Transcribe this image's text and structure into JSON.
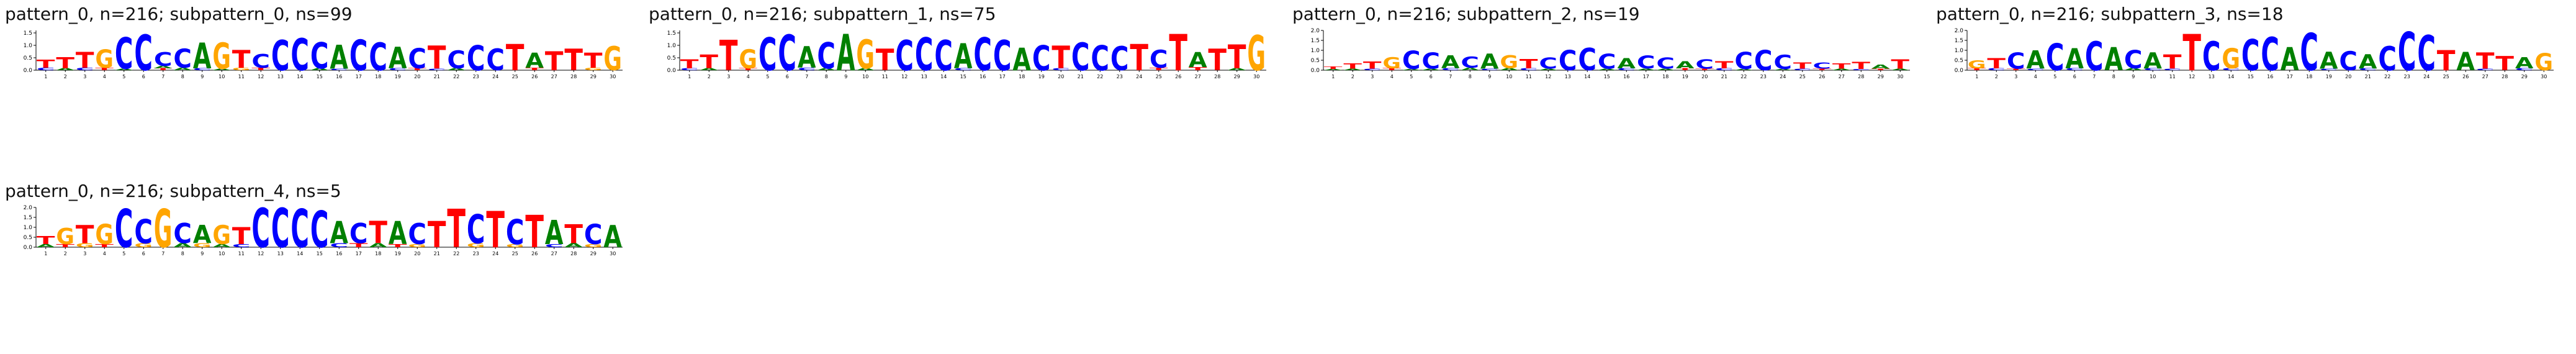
{
  "page": {
    "background": "#ffffff"
  },
  "colors": {
    "A": "#008000",
    "C": "#0000ff",
    "G": "#ffa500",
    "T": "#ff0000"
  },
  "positions": [
    1,
    2,
    3,
    4,
    5,
    6,
    7,
    8,
    9,
    10,
    11,
    12,
    13,
    14,
    15,
    16,
    17,
    18,
    19,
    20,
    21,
    22,
    23,
    24,
    25,
    26,
    27,
    28,
    29,
    30
  ],
  "chart_data": [
    {
      "type": "sequence_logo",
      "title": "pattern_0, n=216; subpattern_0, ns=99",
      "xlabel": "",
      "ylabel": "",
      "ylim": [
        0,
        1.6
      ],
      "yticks": [
        0,
        0.5,
        1.0,
        1.5
      ],
      "stacks": [
        [
          [
            "C",
            0.1
          ],
          [
            "T",
            0.32
          ]
        ],
        [
          [
            "A",
            0.08
          ],
          [
            "T",
            0.45
          ]
        ],
        [
          [
            "C",
            0.1
          ],
          [
            "T",
            0.62
          ]
        ],
        [
          [
            "T",
            0.1
          ],
          [
            "G",
            0.72
          ]
        ],
        [
          [
            "A",
            0.06
          ],
          [
            "C",
            1.25
          ]
        ],
        [
          [
            "C",
            1.42
          ]
        ],
        [
          [
            "T",
            0.08
          ],
          [
            "A",
            0.1
          ],
          [
            "C",
            0.55
          ]
        ],
        [
          [
            "A",
            0.1
          ],
          [
            "C",
            0.75
          ]
        ],
        [
          [
            "C",
            0.08
          ],
          [
            "A",
            1.02
          ]
        ],
        [
          [
            "A",
            0.06
          ],
          [
            "G",
            1.05
          ]
        ],
        [
          [
            "G",
            0.1
          ],
          [
            "T",
            0.7
          ]
        ],
        [
          [
            "T",
            0.1
          ],
          [
            "C",
            0.55
          ]
        ],
        [
          [
            "C",
            1.2
          ]
        ],
        [
          [
            "C",
            1.26
          ]
        ],
        [
          [
            "A",
            0.08
          ],
          [
            "C",
            1.05
          ]
        ],
        [
          [
            "C",
            0.06
          ],
          [
            "A",
            0.95
          ]
        ],
        [
          [
            "C",
            1.22
          ]
        ],
        [
          [
            "C",
            1.1
          ]
        ],
        [
          [
            "C",
            0.08
          ],
          [
            "A",
            0.85
          ]
        ],
        [
          [
            "T",
            0.08
          ],
          [
            "C",
            0.8
          ]
        ],
        [
          [
            "C",
            0.06
          ],
          [
            "T",
            0.92
          ]
        ],
        [
          [
            "A",
            0.08
          ],
          [
            "C",
            0.7
          ]
        ],
        [
          [
            "C",
            1.0
          ]
        ],
        [
          [
            "C",
            0.85
          ]
        ],
        [
          [
            "T",
            1.05
          ]
        ],
        [
          [
            "T",
            0.1
          ],
          [
            "A",
            0.6
          ]
        ],
        [
          [
            "T",
            0.76
          ]
        ],
        [
          [
            "T",
            0.85
          ]
        ],
        [
          [
            "G",
            0.1
          ],
          [
            "T",
            0.6
          ]
        ],
        [
          [
            "G",
            0.95
          ]
        ]
      ]
    },
    {
      "type": "sequence_logo",
      "title": "pattern_0, n=216; subpattern_1, ns=75",
      "xlabel": "",
      "ylabel": "",
      "ylim": [
        0,
        1.6
      ],
      "yticks": [
        0,
        0.5,
        1.0,
        1.5
      ],
      "stacks": [
        [
          [
            "C",
            0.08
          ],
          [
            "T",
            0.35
          ]
        ],
        [
          [
            "A",
            0.08
          ],
          [
            "T",
            0.55
          ]
        ],
        [
          [
            "T",
            1.2
          ]
        ],
        [
          [
            "T",
            0.08
          ],
          [
            "G",
            0.75
          ]
        ],
        [
          [
            "C",
            1.3
          ]
        ],
        [
          [
            "C",
            1.42
          ]
        ],
        [
          [
            "C",
            0.1
          ],
          [
            "A",
            0.85
          ]
        ],
        [
          [
            "A",
            0.08
          ],
          [
            "C",
            1.05
          ]
        ],
        [
          [
            "A",
            1.45
          ]
        ],
        [
          [
            "A",
            0.08
          ],
          [
            "G",
            1.15
          ]
        ],
        [
          [
            "T",
            0.85
          ]
        ],
        [
          [
            "C",
            1.2
          ]
        ],
        [
          [
            "C",
            1.3
          ]
        ],
        [
          [
            "C",
            1.2
          ]
        ],
        [
          [
            "C",
            0.08
          ],
          [
            "A",
            1.0
          ]
        ],
        [
          [
            "C",
            1.3
          ]
        ],
        [
          [
            "C",
            1.2
          ]
        ],
        [
          [
            "A",
            0.9
          ]
        ],
        [
          [
            "C",
            1.0
          ]
        ],
        [
          [
            "C",
            0.08
          ],
          [
            "T",
            0.9
          ]
        ],
        [
          [
            "C",
            1.1
          ]
        ],
        [
          [
            "C",
            1.0
          ]
        ],
        [
          [
            "C",
            0.95
          ]
        ],
        [
          [
            "T",
            1.05
          ]
        ],
        [
          [
            "T",
            0.1
          ],
          [
            "C",
            0.7
          ]
        ],
        [
          [
            "T",
            1.45
          ]
        ],
        [
          [
            "T",
            0.12
          ],
          [
            "A",
            0.6
          ]
        ],
        [
          [
            "T",
            0.85
          ]
        ],
        [
          [
            "A",
            0.08
          ],
          [
            "T",
            0.95
          ]
        ],
        [
          [
            "G",
            1.4
          ]
        ]
      ]
    },
    {
      "type": "sequence_logo",
      "title": "pattern_0, n=216; subpattern_2, ns=19",
      "xlabel": "",
      "ylabel": "",
      "ylim": [
        0,
        2.0
      ],
      "yticks": [
        0,
        0.5,
        1.0,
        1.5,
        2.0
      ],
      "stacks": [
        [
          [
            "A",
            0.06
          ],
          [
            "T",
            0.12
          ]
        ],
        [
          [
            "A",
            0.08
          ],
          [
            "T",
            0.25
          ]
        ],
        [
          [
            "C",
            0.08
          ],
          [
            "T",
            0.35
          ]
        ],
        [
          [
            "T",
            0.1
          ],
          [
            "G",
            0.55
          ]
        ],
        [
          [
            "A",
            0.06
          ],
          [
            "C",
            0.9
          ]
        ],
        [
          [
            "A",
            0.08
          ],
          [
            "C",
            0.8
          ]
        ],
        [
          [
            "C",
            0.1
          ],
          [
            "A",
            0.65
          ]
        ],
        [
          [
            "A",
            0.12
          ],
          [
            "C",
            0.55
          ]
        ],
        [
          [
            "C",
            0.08
          ],
          [
            "A",
            0.75
          ]
        ],
        [
          [
            "A",
            0.1
          ],
          [
            "G",
            0.65
          ]
        ],
        [
          [
            "C",
            0.1
          ],
          [
            "T",
            0.45
          ]
        ],
        [
          [
            "A",
            0.08
          ],
          [
            "C",
            0.55
          ]
        ],
        [
          [
            "C",
            1.0
          ]
        ],
        [
          [
            "C",
            1.1
          ]
        ],
        [
          [
            "A",
            0.08
          ],
          [
            "C",
            0.75
          ]
        ],
        [
          [
            "C",
            0.1
          ],
          [
            "A",
            0.5
          ]
        ],
        [
          [
            "A",
            0.08
          ],
          [
            "C",
            0.65
          ]
        ],
        [
          [
            "A",
            0.08
          ],
          [
            "C",
            0.55
          ]
        ],
        [
          [
            "T",
            0.1
          ],
          [
            "A",
            0.35
          ]
        ],
        [
          [
            "T",
            0.08
          ],
          [
            "C",
            0.45
          ]
        ],
        [
          [
            "C",
            0.1
          ],
          [
            "T",
            0.35
          ]
        ],
        [
          [
            "A",
            0.06
          ],
          [
            "C",
            0.85
          ]
        ],
        [
          [
            "C",
            1.0
          ]
        ],
        [
          [
            "A",
            0.06
          ],
          [
            "C",
            0.7
          ]
        ],
        [
          [
            "C",
            0.08
          ],
          [
            "T",
            0.3
          ]
        ],
        [
          [
            "T",
            0.08
          ],
          [
            "C",
            0.3
          ]
        ],
        [
          [
            "A",
            0.08
          ],
          [
            "T",
            0.25
          ]
        ],
        [
          [
            "C",
            0.06
          ],
          [
            "T",
            0.35
          ]
        ],
        [
          [
            "T",
            0.08
          ],
          [
            "A",
            0.2
          ]
        ],
        [
          [
            "A",
            0.08
          ],
          [
            "T",
            0.45
          ]
        ]
      ]
    },
    {
      "type": "sequence_logo",
      "title": "pattern_0, n=216; subpattern_3, ns=18",
      "xlabel": "",
      "ylabel": "",
      "ylim": [
        0,
        2.0
      ],
      "yticks": [
        0,
        0.5,
        1.0,
        1.5,
        2.0
      ],
      "stacks": [
        [
          [
            "T",
            0.1
          ],
          [
            "G",
            0.4
          ]
        ],
        [
          [
            "C",
            0.1
          ],
          [
            "T",
            0.5
          ]
        ],
        [
          [
            "T",
            0.08
          ],
          [
            "C",
            0.8
          ]
        ],
        [
          [
            "C",
            0.08
          ],
          [
            "A",
            0.9
          ]
        ],
        [
          [
            "C",
            1.35
          ]
        ],
        [
          [
            "C",
            0.1
          ],
          [
            "A",
            1.0
          ]
        ],
        [
          [
            "C",
            1.45
          ]
        ],
        [
          [
            "A",
            1.15
          ]
        ],
        [
          [
            "A",
            0.1
          ],
          [
            "C",
            0.9
          ]
        ],
        [
          [
            "C",
            0.1
          ],
          [
            "A",
            0.8
          ]
        ],
        [
          [
            "C",
            0.08
          ],
          [
            "T",
            0.7
          ]
        ],
        [
          [
            "T",
            1.8
          ]
        ],
        [
          [
            "C",
            1.45
          ]
        ],
        [
          [
            "C",
            0.1
          ],
          [
            "G",
            1.0
          ]
        ],
        [
          [
            "C",
            1.55
          ]
        ],
        [
          [
            "C",
            1.65
          ]
        ],
        [
          [
            "A",
            1.15
          ]
        ],
        [
          [
            "C",
            1.85
          ]
        ],
        [
          [
            "C",
            0.08
          ],
          [
            "A",
            0.85
          ]
        ],
        [
          [
            "C",
            0.95
          ]
        ],
        [
          [
            "C",
            0.1
          ],
          [
            "A",
            0.7
          ]
        ],
        [
          [
            "C",
            1.2
          ]
        ],
        [
          [
            "C",
            1.9
          ]
        ],
        [
          [
            "C",
            1.75
          ]
        ],
        [
          [
            "T",
            1.0
          ]
        ],
        [
          [
            "A",
            0.9
          ]
        ],
        [
          [
            "C",
            0.08
          ],
          [
            "T",
            0.8
          ]
        ],
        [
          [
            "T",
            0.7
          ]
        ],
        [
          [
            "C",
            0.1
          ],
          [
            "A",
            0.55
          ]
        ],
        [
          [
            "G",
            0.85
          ]
        ]
      ]
    },
    {
      "type": "sequence_logo",
      "title": "pattern_0, n=216; subpattern_4, ns=5",
      "xlabel": "",
      "ylabel": "",
      "ylim": [
        0,
        2.0
      ],
      "yticks": [
        0,
        0.5,
        1.0,
        1.5,
        2.0
      ],
      "stacks": [
        [
          [
            "A",
            0.15
          ],
          [
            "T",
            0.4
          ]
        ],
        [
          [
            "T",
            0.15
          ],
          [
            "G",
            0.8
          ]
        ],
        [
          [
            "G",
            0.2
          ],
          [
            "T",
            0.9
          ]
        ],
        [
          [
            "T",
            0.15
          ],
          [
            "G",
            1.0
          ]
        ],
        [
          [
            "C",
            1.9
          ]
        ],
        [
          [
            "G",
            0.2
          ],
          [
            "C",
            1.2
          ]
        ],
        [
          [
            "G",
            1.9
          ]
        ],
        [
          [
            "A",
            0.2
          ],
          [
            "C",
            1.0
          ]
        ],
        [
          [
            "G",
            0.2
          ],
          [
            "A",
            0.9
          ]
        ],
        [
          [
            "A",
            0.15
          ],
          [
            "G",
            0.95
          ]
        ],
        [
          [
            "C",
            0.15
          ],
          [
            "T",
            0.85
          ]
        ],
        [
          [
            "C",
            1.95
          ]
        ],
        [
          [
            "C",
            1.95
          ]
        ],
        [
          [
            "C",
            1.9
          ]
        ],
        [
          [
            "C",
            1.8
          ]
        ],
        [
          [
            "C",
            0.2
          ],
          [
            "A",
            1.1
          ]
        ],
        [
          [
            "T",
            0.2
          ],
          [
            "C",
            1.0
          ]
        ],
        [
          [
            "A",
            0.2
          ],
          [
            "T",
            1.1
          ]
        ],
        [
          [
            "T",
            0.15
          ],
          [
            "A",
            1.15
          ]
        ],
        [
          [
            "G",
            0.15
          ],
          [
            "C",
            1.05
          ]
        ],
        [
          [
            "T",
            1.3
          ]
        ],
        [
          [
            "T",
            1.9
          ]
        ],
        [
          [
            "G",
            0.2
          ],
          [
            "C",
            1.45
          ]
        ],
        [
          [
            "T",
            1.8
          ]
        ],
        [
          [
            "G",
            0.15
          ],
          [
            "C",
            1.25
          ]
        ],
        [
          [
            "T",
            1.6
          ]
        ],
        [
          [
            "C",
            0.15
          ],
          [
            "A",
            1.2
          ]
        ],
        [
          [
            "A",
            0.2
          ],
          [
            "T",
            0.95
          ]
        ],
        [
          [
            "G",
            0.15
          ],
          [
            "C",
            1.0
          ]
        ],
        [
          [
            "A",
            1.1
          ]
        ]
      ]
    }
  ]
}
